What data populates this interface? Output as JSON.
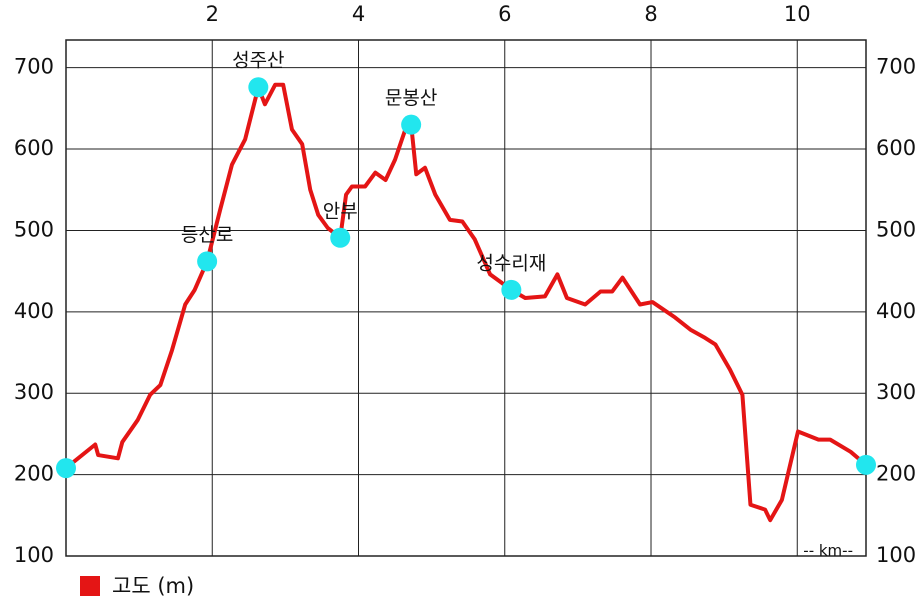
{
  "chart_data": {
    "type": "line",
    "x_label": "-- km--",
    "xlim": [
      0,
      10.94
    ],
    "ylim": [
      100,
      734
    ],
    "xticks": [
      2,
      4,
      6,
      8,
      10
    ],
    "yticks": [
      100,
      200,
      300,
      400,
      500,
      600,
      700
    ],
    "grid": true,
    "legend": "bottom-left",
    "series": [
      {
        "name": "고도 (m)",
        "color": "#e41515",
        "x": [
          0,
          0.4,
          0.44,
          0.71,
          0.77,
          0.98,
          1.15,
          1.29,
          1.45,
          1.63,
          1.76,
          1.93,
          2.11,
          2.27,
          2.45,
          2.63,
          2.72,
          2.86,
          2.97,
          3.09,
          3.23,
          3.34,
          3.45,
          3.58,
          3.75,
          3.83,
          3.91,
          4.09,
          4.23,
          4.37,
          4.5,
          4.64,
          4.72,
          4.79,
          4.91,
          5.05,
          5.25,
          5.42,
          5.59,
          5.8,
          6.09,
          6.28,
          6.55,
          6.72,
          6.85,
          7.1,
          7.31,
          7.47,
          7.61,
          7.85,
          8.02,
          8.33,
          8.54,
          8.74,
          8.88,
          9.08,
          9.25,
          9.36,
          9.56,
          9.63,
          9.79,
          10.01,
          10.29,
          10.45,
          10.73,
          10.94
        ],
        "values": [
          208,
          237,
          224,
          220,
          240,
          267,
          298,
          310,
          353,
          409,
          427,
          462,
          526,
          581,
          612,
          676,
          655,
          679,
          679,
          624,
          606,
          550,
          519,
          503,
          491,
          544,
          554,
          554,
          571,
          562,
          587,
          624,
          630,
          569,
          577,
          544,
          513,
          511,
          489,
          446,
          427,
          417,
          419,
          446,
          417,
          409,
          425,
          425,
          442,
          409,
          412,
          393,
          378,
          368,
          360,
          329,
          298,
          163,
          157,
          144,
          169,
          253,
          243,
          243,
          228,
          212
        ]
      }
    ],
    "markers": {
      "color": "#22e6ee",
      "x": [
        0,
        1.93,
        2.63,
        3.75,
        4.72,
        6.09,
        10.94
      ],
      "values": [
        208,
        462,
        676,
        491,
        630,
        427,
        212
      ],
      "labels": [
        null,
        "등산로",
        "성주산",
        "안부",
        "문봉산",
        "성수리재",
        null
      ]
    }
  }
}
